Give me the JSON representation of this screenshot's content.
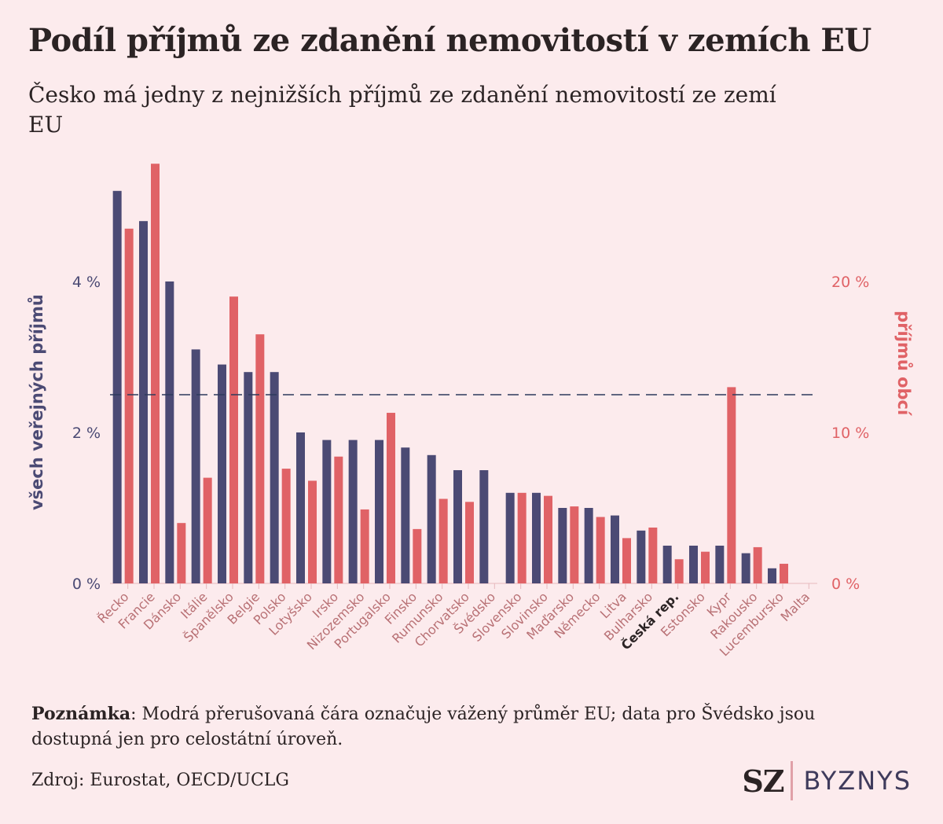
{
  "header": {
    "title": "Podíl příjmů ze zdanění nemovitostí v zemích EU",
    "subtitle": "Česko má jedny z nejnižších příjmů ze zdanění nemovitostí ze zemí EU"
  },
  "footer": {
    "note_label": "Poznámka",
    "note_text": ": Modrá přerušovaná čára označuje vážený průměr EU; data pro Švédsko jsou dostupná jen pro celostátní úroveň.",
    "source": "Zdroj: Eurostat, OECD/UCLG",
    "logo_sz": "SZ",
    "logo_byznys": "BYZNYS"
  },
  "colors": {
    "background": "#fcebed",
    "blue": "#4b4a74",
    "red": "#e06266",
    "axis_label_text": "#b87074",
    "highlight_label": "#2b2324"
  },
  "chart_data": {
    "type": "bar",
    "categories": [
      "Řecko",
      "Francie",
      "Dánsko",
      "Itálie",
      "Španělsko",
      "Belgie",
      "Polsko",
      "Lotyšsko",
      "Irsko",
      "Nizozemsko",
      "Portugalsko",
      "Finsko",
      "Rumunsko",
      "Chorvatsko",
      "Švédsko",
      "Slovensko",
      "Slovinsko",
      "Maďarsko",
      "Německo",
      "Litva",
      "Bulharsko",
      "Česká rep.",
      "Estonsko",
      "Kypr",
      "Rakousko",
      "Lucembursko",
      "Malta"
    ],
    "highlight_category": "Česká rep.",
    "series": [
      {
        "name": "všech veřejných příjmů",
        "axis": "left",
        "color": "#4b4a74",
        "values": [
          5.2,
          4.8,
          4.0,
          3.1,
          2.9,
          2.8,
          2.8,
          2.0,
          1.9,
          1.9,
          1.9,
          1.8,
          1.7,
          1.5,
          1.5,
          1.2,
          1.2,
          1.0,
          1.0,
          0.9,
          0.7,
          0.5,
          0.5,
          0.5,
          0.4,
          0.2,
          0.0
        ]
      },
      {
        "name": "příjmů obcí",
        "axis": "right",
        "color": "#e06266",
        "values": [
          23.5,
          27.8,
          4.0,
          7.0,
          19.0,
          16.5,
          7.6,
          6.8,
          8.4,
          4.9,
          11.3,
          3.6,
          5.6,
          5.4,
          null,
          6.0,
          5.8,
          5.1,
          4.4,
          3.0,
          3.7,
          1.6,
          2.1,
          13.0,
          2.4,
          1.3,
          0.0
        ]
      }
    ],
    "eu_average_left": 2.5,
    "ylim_left": [
      0,
      5.6
    ],
    "ylim_right": [
      0,
      28
    ],
    "yticks_left": [
      "0 %",
      "2 %",
      "4 %"
    ],
    "yticks_left_values": [
      0,
      2,
      4
    ],
    "yticks_right": [
      "0 %",
      "10 %",
      "20 %"
    ],
    "yticks_right_values": [
      0,
      10,
      20
    ],
    "ylabel_left": "všech veřejných příjmů",
    "ylabel_right": "příjmů obcí",
    "grid": false
  }
}
